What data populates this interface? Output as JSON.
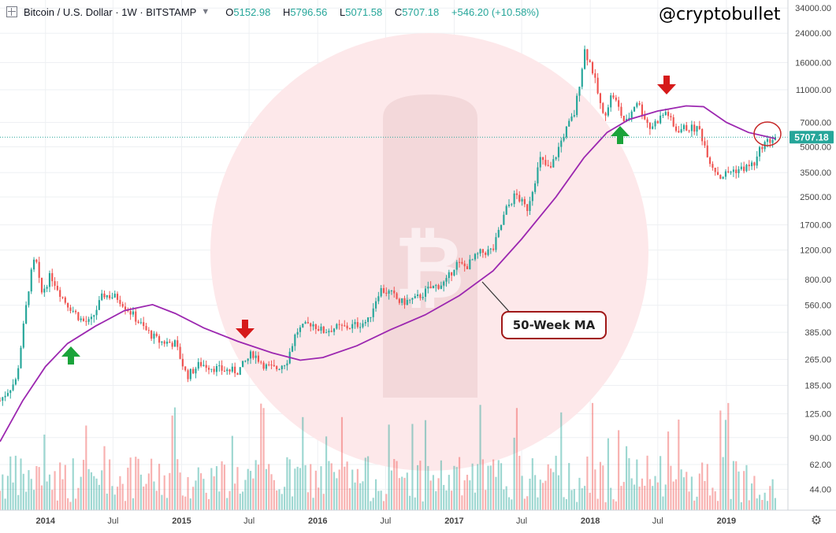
{
  "header": {
    "symbol": "Bitcoin / U.S. Dollar · 1W · BITSTAMP",
    "open_label": "O",
    "open": "5152.98",
    "high_label": "H",
    "high": "5796.56",
    "low_label": "L",
    "low": "5071.58",
    "close_label": "C",
    "close": "5707.18",
    "change": "+546.20 (+10.58%)"
  },
  "handle": "@cryptobullet",
  "annotation": {
    "ma_label": "50-Week MA"
  },
  "colors": {
    "up": "#26a69a",
    "down": "#ef5350",
    "ma": "#9c27b0",
    "arrow_up": "#1aa33a",
    "arrow_down": "#d61a1a",
    "label_bg": "#26a69a"
  },
  "chart_data": {
    "type": "candlestick",
    "x_axis": {
      "tick_labels": [
        "2014",
        "Jul",
        "2015",
        "Jul",
        "2016",
        "Jul",
        "2017",
        "Jul",
        "2018",
        "Jul",
        "2019"
      ],
      "tick_dates": [
        "2014-01-01",
        "2014-07-01",
        "2015-01-01",
        "2015-07-01",
        "2016-01-01",
        "2016-07-01",
        "2017-01-01",
        "2017-07-01",
        "2018-01-01",
        "2018-07-01",
        "2019-01-01"
      ],
      "range": [
        "2013-09-01",
        "2019-06-15"
      ]
    },
    "y_axis": {
      "scale": "log",
      "tick_values": [
        34000,
        24000,
        16000,
        11000,
        7000,
        5000,
        3500,
        2500,
        1700,
        1200,
        800,
        560,
        385,
        265,
        185,
        125,
        90,
        62,
        44
      ],
      "tick_labels": [
        "34000.00",
        "24000.00",
        "16000.00",
        "11000.00",
        "7000.00",
        "5000.00",
        "3500.00",
        "2500.00",
        "1700.00",
        "1200.00",
        "800.00",
        "560.00",
        "385.00",
        "265.00",
        "185.00",
        "125.00",
        "90.00",
        "62.00",
        "44.00"
      ],
      "range": [
        33,
        38000
      ]
    },
    "last_price": 5707.18,
    "last_price_label": "5707.18",
    "price_path": [
      [
        "2013-09-01",
        150
      ],
      [
        "2013-10-15",
        200
      ],
      [
        "2013-11-20",
        800
      ],
      [
        "2013-12-05",
        1100
      ],
      [
        "2013-12-20",
        650
      ],
      [
        "2014-01-15",
        850
      ],
      [
        "2014-02-20",
        600
      ],
      [
        "2014-04-10",
        450
      ],
      [
        "2014-05-01",
        440
      ],
      [
        "2014-06-05",
        650
      ],
      [
        "2014-07-15",
        620
      ],
      [
        "2014-08-20",
        500
      ],
      [
        "2014-09-25",
        400
      ],
      [
        "2014-11-01",
        340
      ],
      [
        "2014-12-15",
        330
      ],
      [
        "2015-01-15",
        210
      ],
      [
        "2015-02-20",
        250
      ],
      [
        "2015-04-15",
        230
      ],
      [
        "2015-06-01",
        225
      ],
      [
        "2015-07-10",
        290
      ],
      [
        "2015-08-15",
        240
      ],
      [
        "2015-09-10",
        232
      ],
      [
        "2015-10-10",
        260
      ],
      [
        "2015-11-05",
        390
      ],
      [
        "2015-12-15",
        440
      ],
      [
        "2016-01-15",
        390
      ],
      [
        "2016-02-15",
        410
      ],
      [
        "2016-03-25",
        415
      ],
      [
        "2016-05-15",
        450
      ],
      [
        "2016-06-15",
        700
      ],
      [
        "2016-07-15",
        660
      ],
      [
        "2016-08-10",
        580
      ],
      [
        "2016-09-20",
        610
      ],
      [
        "2016-10-25",
        700
      ],
      [
        "2016-12-10",
        770
      ],
      [
        "2017-01-05",
        1000
      ],
      [
        "2017-02-01",
        950
      ],
      [
        "2017-03-10",
        1150
      ],
      [
        "2017-04-15",
        1200
      ],
      [
        "2017-05-20",
        2100
      ],
      [
        "2017-06-15",
        2600
      ],
      [
        "2017-07-15",
        2100
      ],
      [
        "2017-08-20",
        4200
      ],
      [
        "2017-09-15",
        3600
      ],
      [
        "2017-10-20",
        5800
      ],
      [
        "2017-11-20",
        8000
      ],
      [
        "2017-12-17",
        19000
      ],
      [
        "2018-01-05",
        15000
      ],
      [
        "2018-02-05",
        7500
      ],
      [
        "2018-03-01",
        10500
      ],
      [
        "2018-04-05",
        6800
      ],
      [
        "2018-05-05",
        9500
      ],
      [
        "2018-06-10",
        6500
      ],
      [
        "2018-07-25",
        8200
      ],
      [
        "2018-08-15",
        6300
      ],
      [
        "2018-09-15",
        6500
      ],
      [
        "2018-10-20",
        6400
      ],
      [
        "2018-11-20",
        4000
      ],
      [
        "2018-12-15",
        3300
      ],
      [
        "2019-01-15",
        3600
      ],
      [
        "2019-02-15",
        3700
      ],
      [
        "2019-03-20",
        4000
      ],
      [
        "2019-04-05",
        5100
      ],
      [
        "2019-05-12",
        5707
      ]
    ],
    "ma_path": [
      [
        "2013-09-01",
        85
      ],
      [
        "2013-11-01",
        150
      ],
      [
        "2014-01-01",
        240
      ],
      [
        "2014-03-01",
        330
      ],
      [
        "2014-05-15",
        420
      ],
      [
        "2014-08-01",
        520
      ],
      [
        "2014-10-15",
        565
      ],
      [
        "2014-12-15",
        500
      ],
      [
        "2015-03-01",
        410
      ],
      [
        "2015-06-01",
        340
      ],
      [
        "2015-09-01",
        290
      ],
      [
        "2015-11-15",
        262
      ],
      [
        "2016-01-15",
        272
      ],
      [
        "2016-04-15",
        320
      ],
      [
        "2016-07-15",
        400
      ],
      [
        "2016-10-15",
        490
      ],
      [
        "2017-01-15",
        640
      ],
      [
        "2017-04-15",
        900
      ],
      [
        "2017-07-01",
        1400
      ],
      [
        "2017-10-01",
        2500
      ],
      [
        "2017-12-15",
        4300
      ],
      [
        "2018-02-15",
        6100
      ],
      [
        "2018-04-15",
        7300
      ],
      [
        "2018-07-01",
        8200
      ],
      [
        "2018-09-15",
        8800
      ],
      [
        "2018-11-01",
        8700
      ],
      [
        "2019-01-01",
        7000
      ],
      [
        "2019-03-01",
        6100
      ],
      [
        "2019-05-12",
        5600
      ]
    ],
    "volume_axis": "unlabeled"
  }
}
